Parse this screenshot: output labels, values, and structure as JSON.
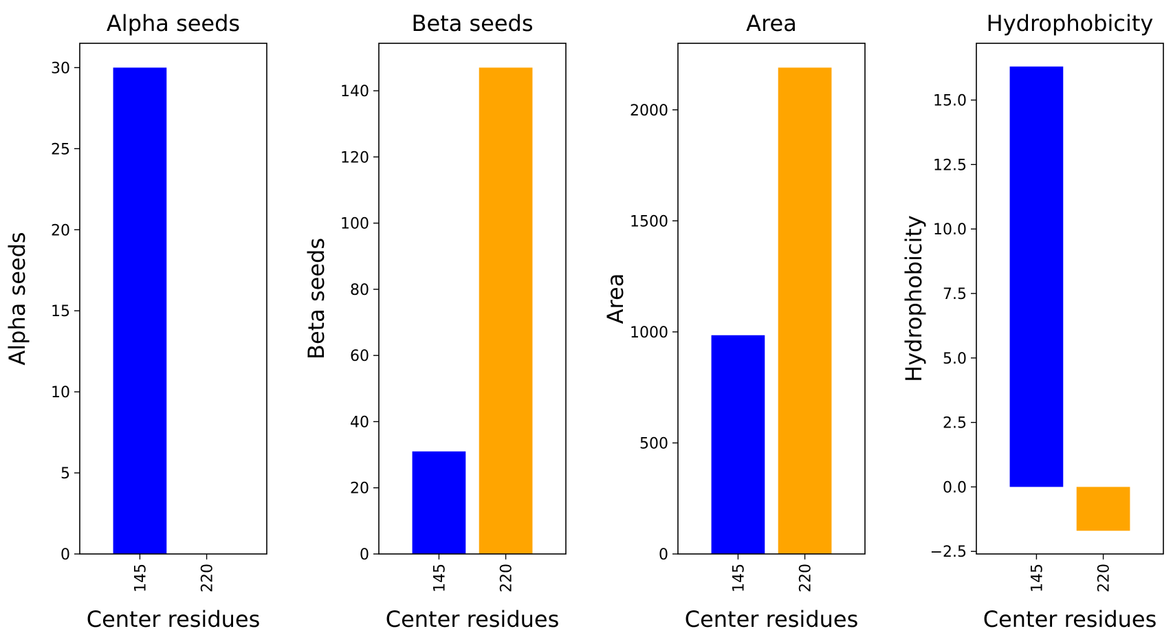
{
  "chart_data": [
    {
      "type": "bar",
      "title": "Alpha seeds",
      "xlabel": "Center residues",
      "ylabel": "Alpha seeds",
      "categories": [
        "145",
        "220"
      ],
      "values": [
        30,
        0
      ],
      "colors": [
        "#0000ff",
        "#ffa500"
      ],
      "ylim": [
        0,
        31.5
      ],
      "yticks": [
        0,
        5,
        10,
        15,
        20,
        25,
        30
      ],
      "ytick_labels": [
        "0",
        "5",
        "10",
        "15",
        "20",
        "25",
        "30"
      ],
      "grid": false
    },
    {
      "type": "bar",
      "title": "Beta seeds",
      "xlabel": "Center residues",
      "ylabel": "Beta seeds",
      "categories": [
        "145",
        "220"
      ],
      "values": [
        31,
        147
      ],
      "colors": [
        "#0000ff",
        "#ffa500"
      ],
      "ylim": [
        0,
        154.35
      ],
      "yticks": [
        0,
        20,
        40,
        60,
        80,
        100,
        120,
        140
      ],
      "ytick_labels": [
        "0",
        "20",
        "40",
        "60",
        "80",
        "100",
        "120",
        "140"
      ],
      "grid": false
    },
    {
      "type": "bar",
      "title": "Area",
      "xlabel": "Center residues",
      "ylabel": "Area",
      "categories": [
        "145",
        "220"
      ],
      "values": [
        985,
        2190
      ],
      "colors": [
        "#0000ff",
        "#ffa500"
      ],
      "ylim": [
        0,
        2299.5
      ],
      "yticks": [
        0,
        500,
        1000,
        1500,
        2000
      ],
      "ytick_labels": [
        "0",
        "500",
        "1000",
        "1500",
        "2000"
      ],
      "grid": false
    },
    {
      "type": "bar",
      "title": "Hydrophobicity",
      "xlabel": "Center residues",
      "ylabel": "Hydrophobicity",
      "categories": [
        "145",
        "220"
      ],
      "values": [
        16.3,
        -1.7
      ],
      "colors": [
        "#0000ff",
        "#ffa500"
      ],
      "ylim": [
        -2.6,
        17.2
      ],
      "yticks": [
        -2.5,
        0,
        2.5,
        5,
        7.5,
        10,
        12.5,
        15
      ],
      "ytick_labels": [
        "−2.5",
        "0.0",
        "2.5",
        "5.0",
        "7.5",
        "10.0",
        "12.5",
        "15.0"
      ],
      "grid": false
    }
  ]
}
